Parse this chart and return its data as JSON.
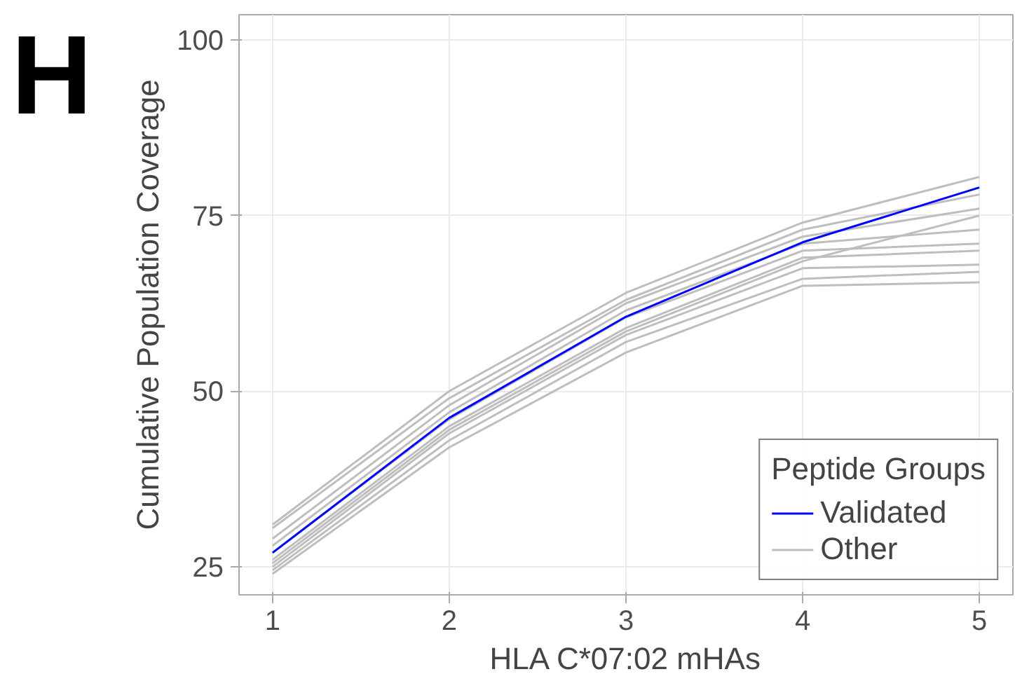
{
  "chart_data": {
    "type": "line",
    "xlabel": "HLA C*07:02 mHAs",
    "ylabel": "Cumulative Population Coverage",
    "legend_title": "Peptide Groups",
    "annotations": [
      "H"
    ],
    "x": [
      1,
      2,
      3,
      4,
      5
    ],
    "xlim": [
      0.81,
      5.19
    ],
    "ylim": [
      21,
      103.6
    ],
    "xticks": [
      1,
      2,
      3,
      4,
      5
    ],
    "yticks": [
      25,
      50,
      75,
      100
    ],
    "grid": true,
    "legend": "bottom right",
    "marker": "none",
    "line_style": "solid",
    "series": [
      {
        "name": "Other",
        "color": "#bebebe",
        "values": [
          31,
          50,
          64,
          74,
          80.5
        ]
      },
      {
        "color": "#bebebe",
        "values": [
          30.5,
          49,
          63,
          73,
          78
        ]
      },
      {
        "color": "#bebebe",
        "values": [
          29,
          48,
          62.5,
          72,
          76
        ]
      },
      {
        "color": "#bebebe",
        "values": [
          28,
          47,
          61.5,
          71,
          73
        ]
      },
      {
        "color": "#bebebe",
        "values": [
          27,
          46,
          60.5,
          70,
          71
        ]
      },
      {
        "color": "#bebebe",
        "values": [
          26,
          45,
          59,
          69,
          70
        ]
      },
      {
        "color": "#bebebe",
        "values": [
          25,
          44,
          58,
          67.5,
          68
        ]
      },
      {
        "color": "#bebebe",
        "values": [
          24.5,
          43,
          57,
          66,
          67
        ]
      },
      {
        "color": "#bebebe",
        "values": [
          24,
          42,
          55.5,
          65,
          65.5
        ]
      },
      {
        "color": "#bebebe",
        "values": [
          25.5,
          44.5,
          58.5,
          68.5,
          75
        ]
      },
      {
        "name": "Validated",
        "color": "#0000ff",
        "values": [
          27,
          46.2,
          60.6,
          71.2,
          79
        ]
      }
    ]
  }
}
